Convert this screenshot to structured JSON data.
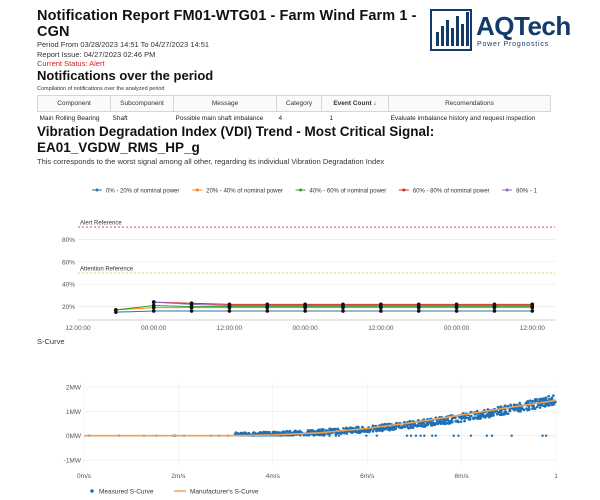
{
  "report": {
    "title": "Notification Report FM01-WTG01 - Farm Wind Farm 1 - CGN",
    "period": "Period From 03/28/2023 14:51 To 04/27/2023 14:51",
    "issue": "Report Issue: 04/27/2023 02:46 PM",
    "status": "Current Status: Alert"
  },
  "logo": {
    "name": "AQTech",
    "tagline": "Power Prognostics",
    "color": "#123a6b"
  },
  "notifications": {
    "heading": "Notifications over the period",
    "subtitle": "Compilation of notifications over the analyzed period",
    "columns": [
      "Component",
      "Subcomponent",
      "Message",
      "Category",
      "Event Count ↓",
      "Recomendations"
    ],
    "rows": [
      [
        "Main Rolling Bearing",
        "Shaft",
        "Possible main shaft imbalance",
        "4",
        "1",
        "Evaluate imbalance history and request inspection"
      ]
    ]
  },
  "vdi": {
    "heading": "Vibration Degradation Index (VDI) Trend - Most Critical Signal: EA01_VGDW_RMS_HP_g",
    "description": "This corresponds to the worst signal among all other, regarding its individual Vibration Degradation Index"
  },
  "scurve_label": "S-Curve",
  "chart_data": [
    {
      "type": "line",
      "legend_position": "top",
      "x_tick_labels": [
        "12:00:00",
        "00:00:00",
        "12:00:00",
        "00:00:00",
        "12:00:00",
        "00:00:00",
        "12:00:00"
      ],
      "y_ticks": [
        20,
        40,
        60,
        80
      ],
      "y_tick_labels": [
        "20%",
        "40%",
        "60%",
        "80%"
      ],
      "ylim": [
        8,
        100
      ],
      "reference_lines": [
        {
          "label": "Alert Reference",
          "value": 91,
          "color": "#d43a3a"
        },
        {
          "label": "Attention Reference",
          "value": 50,
          "color": "#d9c21a"
        }
      ],
      "x": [
        0.5,
        1,
        1.5,
        2,
        2.5,
        3,
        3.5,
        4,
        4.5,
        5,
        5.5,
        6
      ],
      "series": [
        {
          "name": "0% - 20% of nominal power",
          "color": "#1f77b4",
          "values": [
            15,
            16,
            16,
            16,
            16,
            16,
            16,
            16,
            16,
            16,
            16,
            16
          ]
        },
        {
          "name": "20% - 40% of nominal power",
          "color": "#ff7f0e",
          "values": [
            17,
            19,
            19,
            19,
            19,
            19,
            19,
            19,
            19,
            19,
            19,
            19
          ]
        },
        {
          "name": "40% - 60% of nominal power",
          "color": "#2ca02c",
          "values": [
            17,
            21,
            20,
            20,
            20,
            20,
            20,
            20,
            20,
            20,
            20,
            20
          ]
        },
        {
          "name": "60% - 80% of nominal power",
          "color": "#d62728",
          "values": [
            null,
            24,
            23,
            22,
            22,
            22,
            22,
            22,
            22,
            22,
            22,
            22
          ]
        },
        {
          "name": "80% - 1",
          "color": "#9467bd",
          "values": [
            null,
            24,
            22,
            21,
            21,
            21,
            21,
            21,
            21,
            21,
            21,
            21
          ]
        }
      ]
    },
    {
      "type": "scatter",
      "x_ticks": [
        0,
        2,
        4,
        6,
        8,
        10
      ],
      "x_tick_labels": [
        "0m/s",
        "2m/s",
        "4m/s",
        "6m/s",
        "8m/s",
        "1"
      ],
      "y_ticks": [
        -1,
        0,
        1,
        2
      ],
      "y_tick_labels": [
        "-1MW",
        "0MW",
        "1MW",
        "2MW"
      ],
      "xlim": [
        0,
        10
      ],
      "ylim": [
        -1.2,
        2.2
      ],
      "legend_position": "bottom",
      "series": [
        {
          "name": "Measured S-Curve",
          "color": "#1f6fb4",
          "style": "scatter"
        },
        {
          "name": "Manufacturer's S-Curve",
          "color": "#f0a050",
          "style": "line",
          "x": [
            0,
            3,
            3.5,
            4,
            5,
            6,
            7,
            8,
            9,
            10
          ],
          "y": [
            0,
            0,
            0.01,
            0.03,
            0.12,
            0.3,
            0.55,
            0.85,
            1.15,
            1.45
          ]
        }
      ]
    }
  ]
}
